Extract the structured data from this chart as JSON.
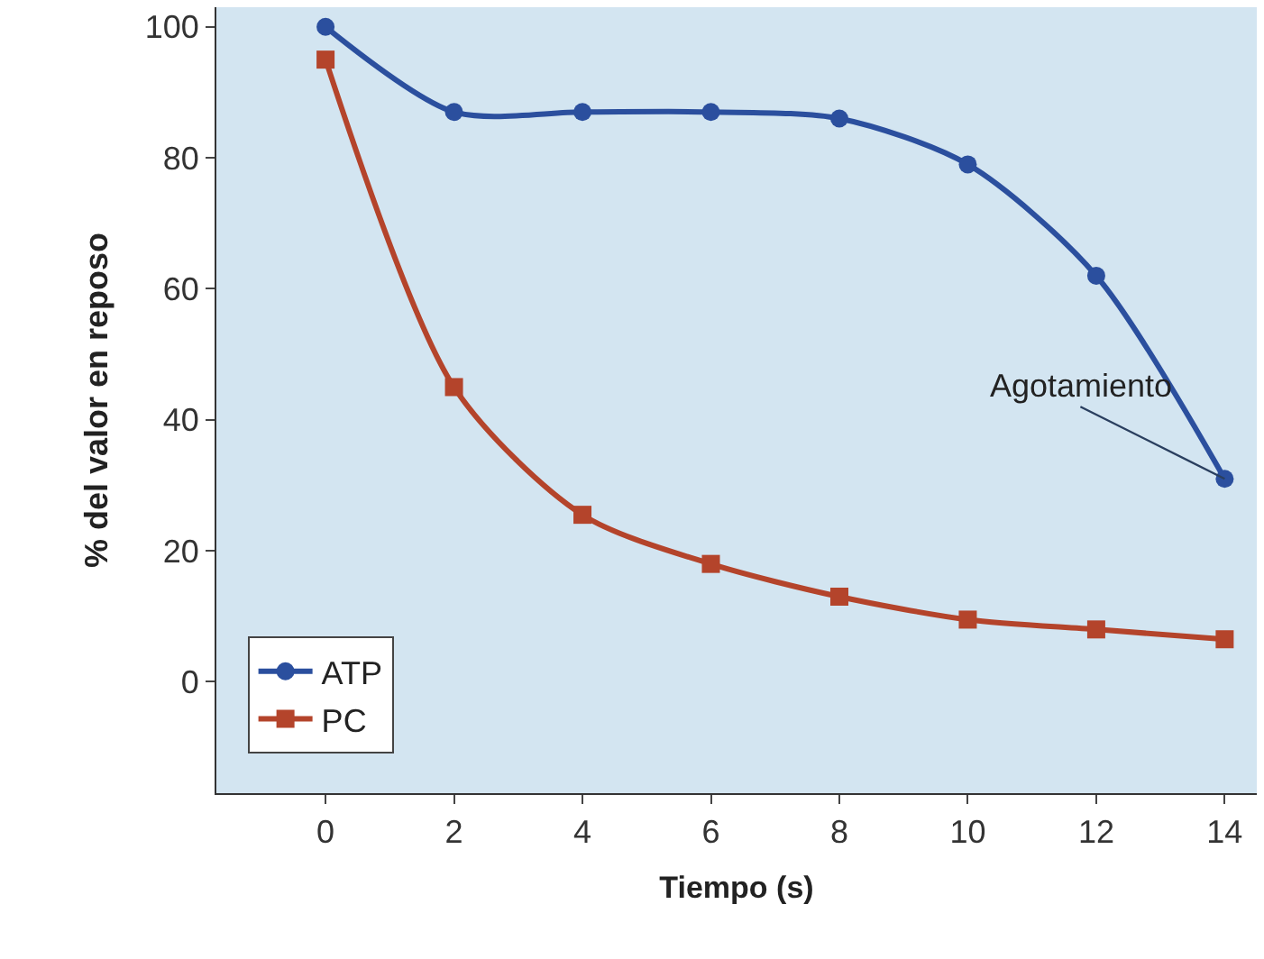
{
  "chart_data": {
    "type": "line",
    "xlabel": "Tiempo (s)",
    "ylabel": "% del valor en reposo",
    "x": [
      0,
      2,
      4,
      6,
      8,
      10,
      12,
      14
    ],
    "series": [
      {
        "name": "ATP",
        "color": "#2b4f9e",
        "marker": "circle",
        "values": [
          100,
          87,
          87,
          87,
          86,
          79,
          62,
          31
        ]
      },
      {
        "name": "PC",
        "color": "#b4442b",
        "marker": "square",
        "values": [
          95,
          45,
          25.5,
          18,
          13,
          9.5,
          8,
          6.5
        ]
      }
    ],
    "annotations": [
      {
        "text": "Agotamiento",
        "x": 14,
        "y": 31
      }
    ],
    "xlim": [
      -1.7,
      14.5
    ],
    "ylim": [
      -17,
      103
    ],
    "xticks": [
      0,
      2,
      4,
      6,
      8,
      10,
      12,
      14
    ],
    "yticks": [
      0,
      20,
      40,
      60,
      80,
      100
    ],
    "grid": false,
    "legend": "bottom left"
  }
}
